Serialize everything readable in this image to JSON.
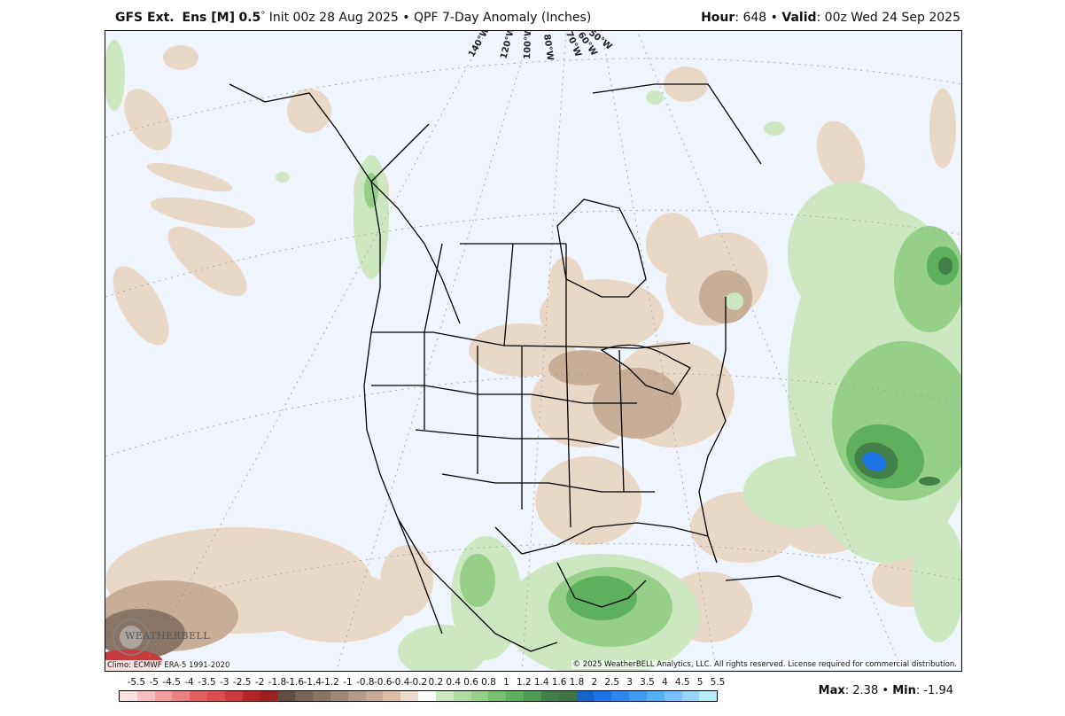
{
  "header": {
    "model": "GFS Ext.",
    "ensemble": "Ens [M]",
    "resolution": "0.5",
    "degree_symbol": "°",
    "init": "Init 00z 28 Aug 2025",
    "separator": "•",
    "product": "QPF 7-Day Anomaly (Inches)",
    "hour_label": "Hour",
    "hour_value": ": 648",
    "valid_label": "Valid",
    "valid_value": ": 00z Wed 24 Sep 2025"
  },
  "map": {
    "region": "North America",
    "climo_note": "Climo: ECMWF ERA-5 1991-2020",
    "copyright": "© 2025 WeatherBELL Analytics, LLC. All rights reserved. License required for commercial distribution.",
    "logo_text": "WEATHERBELL",
    "background_color": "#f0f5fd",
    "longitude_labels": [
      "140°W",
      "120°W",
      "100°W",
      "80°W",
      "70°W",
      "60°W",
      "50°W"
    ]
  },
  "legend": {
    "labels": [
      "-5.5",
      "-5",
      "-4.5",
      "-4",
      "-3.5",
      "-3",
      "-2.5",
      "-2",
      "-1.8",
      "-1.6",
      "-1.4",
      "-1.2",
      "-1",
      "-0.8",
      "-0.6",
      "-0.4",
      "-0.2",
      "0.2",
      "0.4",
      "0.6",
      "0.8",
      "1",
      "1.2",
      "1.4",
      "1.6",
      "1.8",
      "2",
      "2.5",
      "3",
      "3.5",
      "4",
      "4.5",
      "5",
      "5.5"
    ],
    "colors": [
      "#fde0e0",
      "#f9c0c2",
      "#f29e9f",
      "#ea8184",
      "#e26264",
      "#d94f51",
      "#c83a3b",
      "#b02525",
      "#9e1f20",
      "#5e4e44",
      "#766456",
      "#8a7565",
      "#a08878",
      "#b49b88",
      "#c6ab95",
      "#dcbea6",
      "#eddccb",
      "#ffffff",
      "#cbe8c0",
      "#b0dca4",
      "#95cf88",
      "#78c06e",
      "#5fb05d",
      "#4f9b53",
      "#437f48",
      "#3f7343",
      "#1565c8",
      "#1e74e4",
      "#2f87ec",
      "#3f9bf0",
      "#55aef2",
      "#78c0f6",
      "#98d4f8",
      "#b8ecf8"
    ]
  },
  "stats": {
    "max_label": "Max",
    "max_value": ": 2.38",
    "min_label": "Min",
    "min_value": ": -1.94",
    "separator": "•"
  }
}
